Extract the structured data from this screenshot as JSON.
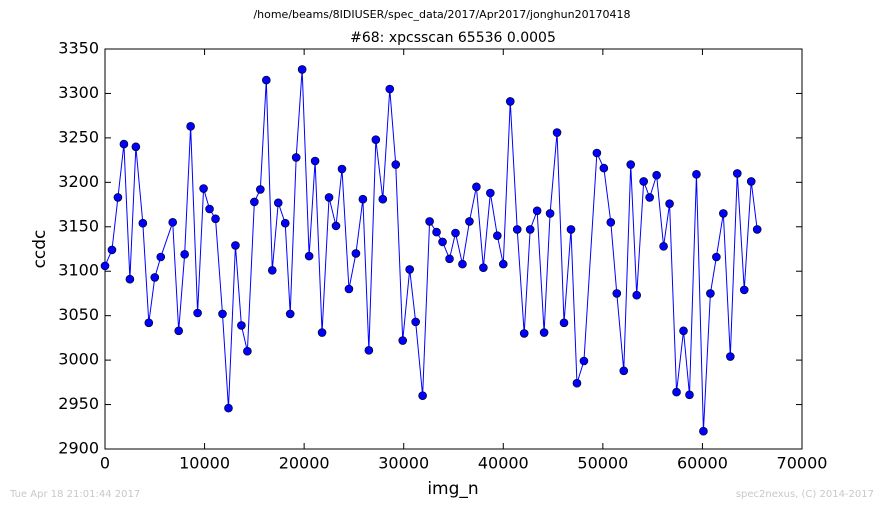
{
  "chart_data": {
    "type": "line",
    "suptitle": "/home/beams/8IDIUSER/spec_data/2017/Apr2017/jonghun20170418",
    "title": "#68: xpcsscan 65536 0.0005",
    "x_label": "img_n",
    "y_label": "ccdc",
    "footer_left": "Tue Apr 18 21:01:44 2017",
    "footer_right": "spec2nexus, (C) 2014-2017",
    "color": "#0000ff",
    "marker": true,
    "x": [
      0,
      700,
      1300,
      1900,
      2500,
      3100,
      3800,
      4400,
      5000,
      5600,
      6800,
      7400,
      8000,
      8600,
      9300,
      9900,
      10500,
      11100,
      11800,
      12400,
      13100,
      13700,
      14300,
      15000,
      15600,
      16200,
      16800,
      17400,
      18100,
      18600,
      19200,
      19800,
      20500,
      21100,
      21800,
      22500,
      23200,
      23800,
      24500,
      25200,
      25900,
      26500,
      27200,
      27900,
      28600,
      29200,
      29900,
      30600,
      31200,
      31900,
      32600,
      33300,
      33900,
      34600,
      35200,
      35900,
      36600,
      37300,
      38000,
      38700,
      39400,
      40000,
      40700,
      41400,
      42100,
      42700,
      43400,
      44100,
      44700,
      45400,
      46100,
      46800,
      47400,
      48100,
      49400,
      50100,
      50800,
      51400,
      52100,
      52800,
      53400,
      54100,
      54700,
      55400,
      56100,
      56700,
      57400,
      58100,
      58700,
      59400,
      60100,
      60800,
      61400,
      62100,
      62800,
      63500,
      64200,
      64900,
      65500
    ],
    "values": [
      3106,
      3124,
      3183,
      3243,
      3091,
      3240,
      3154,
      3042,
      3093,
      3116,
      3155,
      3033,
      3119,
      3263,
      3053,
      3193,
      3170,
      3159,
      3052,
      2946,
      3129,
      3039,
      3010,
      3178,
      3192,
      3315,
      3101,
      3177,
      3154,
      3052,
      3228,
      3327,
      3117,
      3224,
      3031,
      3183,
      3151,
      3215,
      3080,
      3120,
      3181,
      3011,
      3248,
      3181,
      3305,
      3220,
      3022,
      3102,
      3043,
      2960,
      3156,
      3144,
      3133,
      3114,
      3143,
      3108,
      3156,
      3195,
      3104,
      3188,
      3140,
      3108,
      3291,
      3147,
      3030,
      3147,
      3168,
      3031,
      3165,
      3256,
      3042,
      3147,
      2974,
      2999,
      3233,
      3216,
      3155,
      3075,
      2988,
      3220,
      3073,
      3201,
      3183,
      3208,
      3128,
      3176,
      2964,
      3033,
      2961,
      3209,
      2920,
      3075,
      3116,
      3165,
      3004,
      3210,
      3079,
      3201,
      3147
    ],
    "xlim": [
      0,
      70000
    ],
    "xticks": [
      0,
      10000,
      20000,
      30000,
      40000,
      50000,
      60000,
      70000
    ],
    "ylim": [
      2900,
      3350
    ],
    "yticks": [
      2900,
      2950,
      3000,
      3050,
      3100,
      3150,
      3200,
      3250,
      3300,
      3350
    ]
  }
}
